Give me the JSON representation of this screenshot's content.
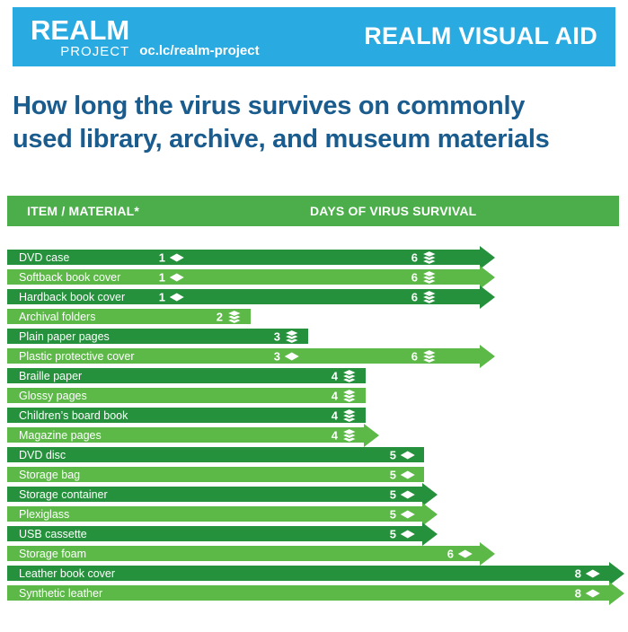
{
  "header": {
    "logo_title": "REALM",
    "logo_subtitle": "PROJECT",
    "url": "oc.lc/realm-project",
    "banner_title": "REALM VISUAL AID"
  },
  "title": "How long the virus survives on commonly used library, archive, and museum materials",
  "table_header": {
    "col_item": "ITEM / MATERIAL*",
    "col_days": "DAYS OF VIRUS SURVIVAL"
  },
  "colors": {
    "banner_cyan": "#29abe2",
    "title_blue": "#1a5c8e",
    "row_dark_green": "#26913c",
    "row_light_green": "#5cb948",
    "table_header_green": "#4cae4a"
  },
  "chart_data": {
    "type": "bar",
    "title": "How long the virus survives on commonly used library, archive, and museum materials",
    "xlabel": "DAYS OF VIRUS SURVIVAL",
    "ylabel": "ITEM / MATERIAL*",
    "xlim": [
      0,
      8
    ],
    "rows": [
      {
        "label": "DVD case",
        "markers": [
          {
            "days": 1,
            "icon": "single-item-icon"
          },
          {
            "days": 6,
            "icon": "stacked-items-icon"
          }
        ],
        "arrow": true
      },
      {
        "label": "Softback book cover",
        "markers": [
          {
            "days": 1,
            "icon": "single-item-icon"
          },
          {
            "days": 6,
            "icon": "stacked-items-icon"
          }
        ],
        "arrow": true
      },
      {
        "label": "Hardback book cover",
        "markers": [
          {
            "days": 1,
            "icon": "single-item-icon"
          },
          {
            "days": 6,
            "icon": "stacked-items-icon"
          }
        ],
        "arrow": true
      },
      {
        "label": "Archival folders",
        "markers": [
          {
            "days": 2,
            "icon": "stacked-items-icon"
          }
        ],
        "arrow": false
      },
      {
        "label": "Plain paper pages",
        "markers": [
          {
            "days": 3,
            "icon": "stacked-items-icon"
          }
        ],
        "arrow": false
      },
      {
        "label": "Plastic protective cover",
        "markers": [
          {
            "days": 3,
            "icon": "single-item-icon"
          },
          {
            "days": 6,
            "icon": "stacked-items-icon"
          }
        ],
        "arrow": true
      },
      {
        "label": "Braille paper",
        "markers": [
          {
            "days": 4,
            "icon": "stacked-items-icon"
          }
        ],
        "arrow": false
      },
      {
        "label": "Glossy pages",
        "markers": [
          {
            "days": 4,
            "icon": "stacked-items-icon"
          }
        ],
        "arrow": false
      },
      {
        "label": "Children’s board book",
        "markers": [
          {
            "days": 4,
            "icon": "stacked-items-icon"
          }
        ],
        "arrow": false
      },
      {
        "label": "Magazine pages",
        "markers": [
          {
            "days": 4,
            "icon": "stacked-items-icon"
          }
        ],
        "arrow": true
      },
      {
        "label": "DVD disc",
        "markers": [
          {
            "days": 5,
            "icon": "single-item-icon"
          }
        ],
        "arrow": false
      },
      {
        "label": "Storage bag",
        "markers": [
          {
            "days": 5,
            "icon": "single-item-icon"
          }
        ],
        "arrow": false
      },
      {
        "label": "Storage container",
        "markers": [
          {
            "days": 5,
            "icon": "single-item-icon"
          }
        ],
        "arrow": true
      },
      {
        "label": "Plexiglass",
        "markers": [
          {
            "days": 5,
            "icon": "single-item-icon"
          }
        ],
        "arrow": true
      },
      {
        "label": "USB cassette",
        "markers": [
          {
            "days": 5,
            "icon": "single-item-icon"
          }
        ],
        "arrow": true
      },
      {
        "label": "Storage foam",
        "markers": [
          {
            "days": 6,
            "icon": "single-item-icon"
          }
        ],
        "arrow": true
      },
      {
        "label": "Leather book cover",
        "markers": [
          {
            "days": 8,
            "icon": "single-item-icon"
          }
        ],
        "arrow": true
      },
      {
        "label": "Synthetic leather",
        "markers": [
          {
            "days": 8,
            "icon": "single-item-icon"
          }
        ],
        "arrow": true
      }
    ]
  }
}
